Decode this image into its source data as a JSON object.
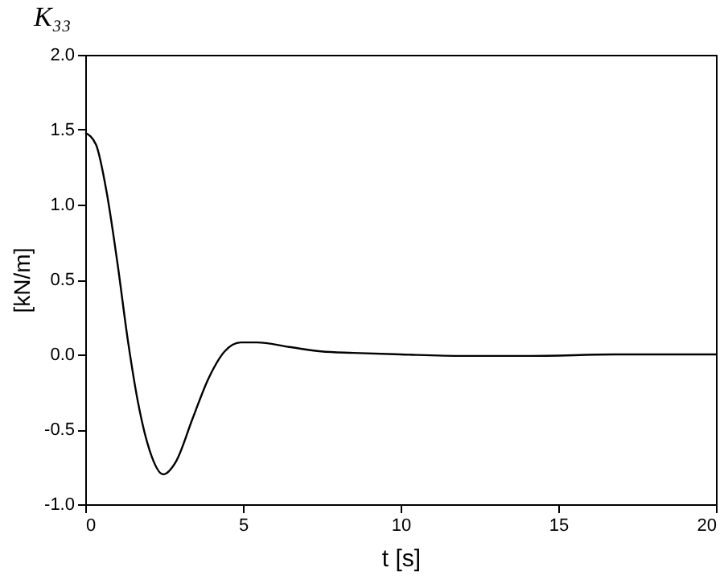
{
  "chart_data": {
    "type": "line",
    "title": "K₃₃",
    "xlabel": "t [s]",
    "ylabel": "[kN/m]",
    "x": [
      0,
      0.34,
      0.68,
      1.02,
      1.36,
      1.7,
      2.04,
      2.47,
      2.89,
      3.4,
      3.91,
      4.42,
      4.93,
      5.44,
      6.46,
      7.48,
      8.5,
      10,
      12,
      14,
      17,
      20
    ],
    "series": [
      {
        "color": "#000000",
        "values": [
          1.48,
          1.4,
          1.08,
          0.61,
          0.08,
          -0.35,
          -0.64,
          -0.8,
          -0.71,
          -0.43,
          -0.16,
          0.02,
          0.08,
          0.08,
          0.05,
          0.02,
          0.01,
          0.0,
          -0.01,
          -0.01,
          0,
          0
        ]
      }
    ],
    "xlim": [
      0,
      20
    ],
    "xticks": [
      0,
      5,
      10,
      15,
      20
    ],
    "ylim": [
      -1,
      2
    ],
    "yticks": [
      {
        "value": -1,
        "label": "-1.0"
      },
      {
        "value": -0.5,
        "label": "-0.5"
      },
      {
        "value": 0,
        "label": "0.0"
      },
      {
        "value": 0.5,
        "label": "0.5"
      },
      {
        "value": 1,
        "label": "1.0"
      },
      {
        "value": 1.5,
        "label": "1.5"
      },
      {
        "value": 2,
        "label": "2.0"
      }
    ],
    "grid": false,
    "legend": false,
    "marker": "none",
    "line_style": "solid"
  }
}
